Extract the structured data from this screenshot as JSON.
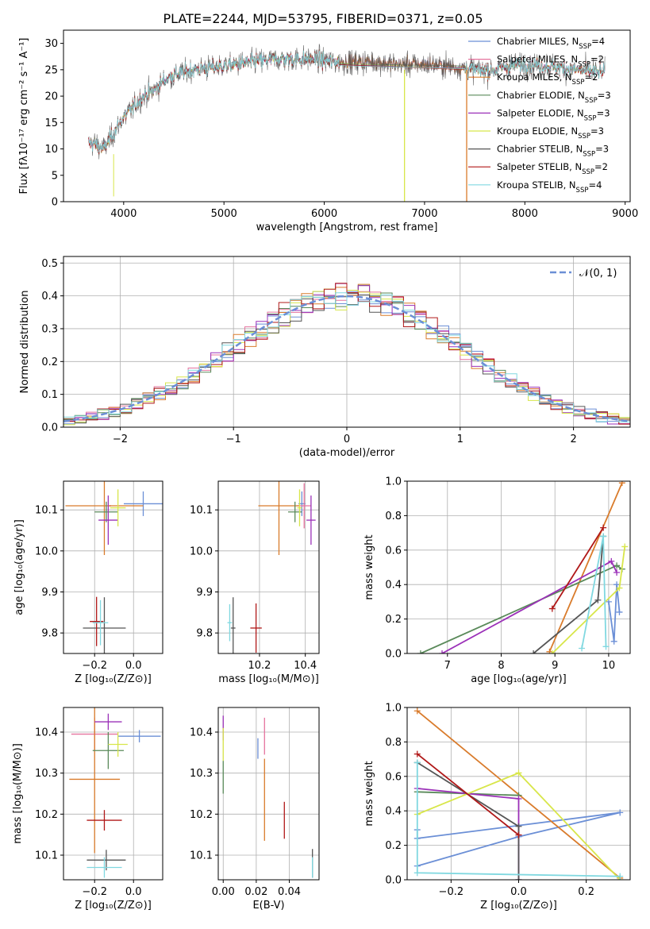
{
  "chart_data": [
    {
      "id": "spectrum",
      "type": "line",
      "title": "PLATE=2244, MJD=53795, FIBERID=0371, z=0.05",
      "xlabel": "wavelength [Angstrom, rest frame]",
      "ylabel": "Flux [fλ10⁻¹⁷ erg cm⁻² s⁻¹ A⁻¹]",
      "xlim": [
        3400,
        9050
      ],
      "ylim": [
        0,
        32.5
      ],
      "xticks": [
        4000,
        5000,
        6000,
        7000,
        8000,
        9000
      ],
      "yticks": [
        0,
        5,
        10,
        15,
        20,
        25,
        30
      ],
      "grid": false,
      "legend_position": "right",
      "legend": [
        {
          "name": "Chabrier MILES, N",
          "sub": "SSP",
          "val": "=4",
          "color": "#6b8fd6"
        },
        {
          "name": "Salpeter MILES, N",
          "sub": "SSP",
          "val": "=2",
          "color": "#e5739e"
        },
        {
          "name": "Kroupa MILES, N",
          "sub": "SSP",
          "val": "=2",
          "color": "#d97b2b"
        },
        {
          "name": "Chabrier ELODIE, N",
          "sub": "SSP",
          "val": "=3",
          "color": "#5a8a5a"
        },
        {
          "name": "Salpeter ELODIE, N",
          "sub": "SSP",
          "val": "=3",
          "color": "#9b30b8"
        },
        {
          "name": "Kroupa ELODIE, N",
          "sub": "SSP",
          "val": "=3",
          "color": "#d8e64a"
        },
        {
          "name": "Chabrier STELIB, N",
          "sub": "SSP",
          "val": "=3",
          "color": "#555555"
        },
        {
          "name": "Salpeter STELIB, N",
          "sub": "SSP",
          "val": "=2",
          "color": "#b01818"
        },
        {
          "name": "Kroupa STELIB, N",
          "sub": "SSP",
          "val": "=4",
          "color": "#80d8e0"
        }
      ],
      "continuum": {
        "x": [
          3650,
          3700,
          3800,
          3900,
          4000,
          4100,
          4200,
          4300,
          4400,
          4500,
          4700,
          4900,
          5100,
          5300,
          5500,
          5700,
          5900,
          6100,
          6300,
          6500,
          6700,
          6900,
          7100,
          7300,
          7500,
          7700,
          7900,
          8100,
          8300,
          8500,
          8800
        ],
        "y": [
          11,
          11,
          10,
          13,
          16,
          18,
          20,
          21,
          23,
          24,
          25,
          25.5,
          26,
          26.5,
          27,
          27,
          27,
          26.5,
          26.5,
          26.5,
          26,
          26,
          26,
          25.5,
          25,
          25,
          26,
          26,
          25.5,
          25,
          24.5
        ]
      }
    },
    {
      "id": "residuals",
      "type": "line",
      "xlabel": "(data-model)/error",
      "ylabel": "Normed distribution",
      "xlim": [
        -2.5,
        2.5
      ],
      "ylim": [
        0,
        0.52
      ],
      "xticks": [
        -2,
        -1,
        0,
        1,
        2
      ],
      "yticks": [
        0.0,
        0.1,
        0.2,
        0.3,
        0.4,
        0.5
      ],
      "grid": true,
      "legend_position": "top-right",
      "reference": {
        "name": "𝒩(0, 1)",
        "mean": 0,
        "sd": 1,
        "color": "#6b8fd6"
      }
    },
    {
      "id": "age-vs-Z",
      "type": "scatter",
      "xlabel": "Z [log₁₀(Z/Z⊙)]",
      "ylabel": "age  [log₁₀(age/yr)]",
      "xlim": [
        -0.36,
        0.15
      ],
      "ylim": [
        9.75,
        10.17
      ],
      "xticks": [
        -0.2,
        0.0
      ],
      "yticks": [
        9.8,
        9.9,
        10.0,
        10.1
      ],
      "grid": true,
      "points": [
        {
          "color": "#6b8fd6",
          "x": 0.05,
          "y": 10.115,
          "xe": 0.1,
          "ye": 0.03
        },
        {
          "color": "#e5739e",
          "x": -0.12,
          "y": 10.11,
          "xe": 0.0,
          "ye": 0.0
        },
        {
          "color": "#d97b2b",
          "x": -0.15,
          "y": 10.11,
          "xe": 0.2,
          "ye": 0.12
        },
        {
          "color": "#5a8a5a",
          "x": -0.14,
          "y": 10.095,
          "xe": 0.06,
          "ye": 0.025
        },
        {
          "color": "#9b30b8",
          "x": -0.13,
          "y": 10.075,
          "xe": 0.05,
          "ye": 0.06
        },
        {
          "color": "#d8e64a",
          "x": -0.08,
          "y": 10.105,
          "xe": 0.04,
          "ye": 0.045
        },
        {
          "color": "#555555",
          "x": -0.15,
          "y": 9.812,
          "xe": 0.11,
          "ye": 0.075
        },
        {
          "color": "#b01818",
          "x": -0.19,
          "y": 9.828,
          "xe": 0.035,
          "ye": 0.06
        },
        {
          "color": "#80d8e0",
          "x": -0.17,
          "y": 9.825,
          "xe": 0.04,
          "ye": 0.055
        }
      ]
    },
    {
      "id": "age-vs-mass",
      "type": "scatter",
      "xlabel": "mass [log₁₀(M/M⊙)]",
      "ylabel": "",
      "xlim": [
        10.02,
        10.46
      ],
      "ylim": [
        9.75,
        10.17
      ],
      "xticks": [
        10.2,
        10.4
      ],
      "yticks": [
        9.8,
        9.9,
        10.0,
        10.1
      ],
      "grid": true,
      "points": [
        {
          "color": "#6b8fd6",
          "x": 10.385,
          "y": 10.115,
          "xe": 0.015,
          "ye": 0.03
        },
        {
          "color": "#e5739e",
          "x": 10.395,
          "y": 10.11,
          "xe": 0.03,
          "ye": 0.055
        },
        {
          "color": "#d97b2b",
          "x": 10.285,
          "y": 10.11,
          "xe": 0.09,
          "ye": 0.12
        },
        {
          "color": "#5a8a5a",
          "x": 10.355,
          "y": 10.095,
          "xe": 0.03,
          "ye": 0.025
        },
        {
          "color": "#9b30b8",
          "x": 10.425,
          "y": 10.075,
          "xe": 0.02,
          "ye": 0.06
        },
        {
          "color": "#d8e64a",
          "x": 10.375,
          "y": 10.105,
          "xe": 0.01,
          "ye": 0.045
        },
        {
          "color": "#555555",
          "x": 10.085,
          "y": 9.812,
          "xe": 0.01,
          "ye": 0.075
        },
        {
          "color": "#b01818",
          "x": 10.185,
          "y": 9.812,
          "xe": 0.025,
          "ye": 0.06
        },
        {
          "color": "#80d8e0",
          "x": 10.07,
          "y": 9.825,
          "xe": 0.01,
          "ye": 0.045
        }
      ]
    },
    {
      "id": "weight-vs-age",
      "type": "line",
      "xlabel": "age  [log₁₀(age/yr)]",
      "ylabel": "mass weight",
      "xlim": [
        6.25,
        10.4
      ],
      "ylim": [
        0,
        1.0
      ],
      "xticks": [
        7,
        8,
        9,
        10
      ],
      "yticks": [
        0.0,
        0.2,
        0.4,
        0.6,
        0.8,
        1.0
      ],
      "grid": true,
      "series": [
        {
          "color": "#6b8fd6",
          "x": [
            10.0,
            10.1,
            10.15,
            10.2
          ],
          "y": [
            0.3,
            0.07,
            0.4,
            0.24
          ]
        },
        {
          "color": "#d97b2b",
          "x": [
            8.9,
            10.25
          ],
          "y": [
            0.01,
            0.99
          ]
        },
        {
          "color": "#5a8a5a",
          "x": [
            6.5,
            10.15,
            10.25
          ],
          "y": [
            0.0,
            0.51,
            0.49
          ]
        },
        {
          "color": "#9b30b8",
          "x": [
            6.9,
            10.05,
            10.15
          ],
          "y": [
            0.0,
            0.535,
            0.47
          ]
        },
        {
          "color": "#d8e64a",
          "x": [
            8.95,
            10.2,
            10.3
          ],
          "y": [
            0.0,
            0.38,
            0.62
          ]
        },
        {
          "color": "#555555",
          "x": [
            8.6,
            9.8,
            9.9
          ],
          "y": [
            0.0,
            0.31,
            0.68
          ]
        },
        {
          "color": "#b01818",
          "x": [
            8.95,
            9.9
          ],
          "y": [
            0.26,
            0.73
          ]
        },
        {
          "color": "#80d8e0",
          "x": [
            9.5,
            9.9,
            9.95
          ],
          "y": [
            0.03,
            0.68,
            0.04
          ]
        }
      ]
    },
    {
      "id": "mass-vs-Z",
      "type": "scatter",
      "xlabel": "Z [log₁₀(Z/Z⊙)]",
      "ylabel": "mass [log₁₀(M/M⊙)]",
      "xlim": [
        -0.36,
        0.15
      ],
      "ylim": [
        10.04,
        10.46
      ],
      "xticks": [
        -0.2,
        0.0
      ],
      "yticks": [
        10.1,
        10.2,
        10.3,
        10.4
      ],
      "grid": true,
      "points": [
        {
          "color": "#6b8fd6",
          "x": 0.03,
          "y": 10.39,
          "xe": 0.11,
          "ye": 0.015
        },
        {
          "color": "#e5739e",
          "x": -0.2,
          "y": 10.395,
          "xe": 0.12,
          "ye": 0.04
        },
        {
          "color": "#d97b2b",
          "x": -0.2,
          "y": 10.285,
          "xe": 0.13,
          "ye": 0.18
        },
        {
          "color": "#5a8a5a",
          "x": -0.13,
          "y": 10.355,
          "xe": 0.08,
          "ye": 0.045
        },
        {
          "color": "#9b30b8",
          "x": -0.13,
          "y": 10.425,
          "xe": 0.07,
          "ye": 0.02
        },
        {
          "color": "#d8e64a",
          "x": -0.08,
          "y": 10.37,
          "xe": 0.05,
          "ye": 0.03
        },
        {
          "color": "#555555",
          "x": -0.14,
          "y": 10.088,
          "xe": 0.1,
          "ye": 0.025
        },
        {
          "color": "#b01818",
          "x": -0.15,
          "y": 10.185,
          "xe": 0.09,
          "ye": 0.025
        },
        {
          "color": "#80d8e0",
          "x": -0.15,
          "y": 10.07,
          "xe": 0.09,
          "ye": 0.025
        }
      ]
    },
    {
      "id": "mass-vs-EBV",
      "type": "scatter",
      "xlabel": "E(B-V)",
      "ylabel": "",
      "xlim": [
        -0.003,
        0.058
      ],
      "ylim": [
        10.04,
        10.46
      ],
      "xticks": [
        0.0,
        0.02,
        0.04
      ],
      "yticks": [
        10.1,
        10.2,
        10.3,
        10.4
      ],
      "grid": true,
      "points": [
        {
          "color": "#6b8fd6",
          "x": 0.021,
          "y": 10.36,
          "xe": 0,
          "ye": 0.025
        },
        {
          "color": "#e5739e",
          "x": 0.025,
          "y": 10.39,
          "xe": 0,
          "ye": 0.045
        },
        {
          "color": "#d97b2b",
          "x": 0.025,
          "y": 10.235,
          "xe": 0,
          "ye": 0.1
        },
        {
          "color": "#5a8a5a",
          "x": 0.0,
          "y": 10.29,
          "xe": 0,
          "ye": 0.04
        },
        {
          "color": "#9b30b8",
          "x": 0.0,
          "y": 10.41,
          "xe": 0,
          "ye": 0.03
        },
        {
          "color": "#d8e64a",
          "x": 0.0,
          "y": 10.37,
          "xe": 0,
          "ye": 0.04
        },
        {
          "color": "#555555",
          "x": 0.054,
          "y": 10.08,
          "xe": 0,
          "ye": 0.035
        },
        {
          "color": "#b01818",
          "x": 0.037,
          "y": 10.185,
          "xe": 0,
          "ye": 0.045
        },
        {
          "color": "#80d8e0",
          "x": 0.054,
          "y": 10.07,
          "xe": 0,
          "ye": 0.025
        }
      ]
    },
    {
      "id": "weight-vs-Z",
      "type": "line",
      "xlabel": "Z [log₁₀(Z/Z⊙)]",
      "ylabel": "mass weight",
      "xlim": [
        -0.33,
        0.33
      ],
      "ylim": [
        0,
        1.0
      ],
      "xticks": [
        -0.2,
        0.0,
        0.2
      ],
      "yticks": [
        0.0,
        0.2,
        0.4,
        0.6,
        0.8,
        1.0
      ],
      "grid": true,
      "series": [
        {
          "color": "#6b8fd6",
          "x": [
            -0.3,
            0.0,
            0.3,
            -0.3,
            -0.3
          ],
          "y": [
            0.08,
            0.25,
            0.39,
            0.24,
            0.29
          ]
        },
        {
          "color": "#d97b2b",
          "x": [
            -0.3,
            0.3
          ],
          "y": [
            0.98,
            0.01
          ]
        },
        {
          "color": "#5a8a5a",
          "x": [
            -0.3,
            0.0
          ],
          "y": [
            0.51,
            0.49
          ]
        },
        {
          "color": "#9b30b8",
          "x": [
            -0.3,
            0.0,
            0.0
          ],
          "y": [
            0.53,
            0.47,
            0.0
          ]
        },
        {
          "color": "#d8e64a",
          "x": [
            -0.3,
            0.0,
            0.3
          ],
          "y": [
            0.38,
            0.62,
            0.0
          ]
        },
        {
          "color": "#555555",
          "x": [
            -0.3,
            0.0,
            0.0
          ],
          "y": [
            0.68,
            0.31,
            0.0
          ]
        },
        {
          "color": "#b01818",
          "x": [
            -0.3,
            0.0
          ],
          "y": [
            0.73,
            0.26
          ]
        },
        {
          "color": "#80d8e0",
          "x": [
            -0.3,
            -0.3,
            0.3
          ],
          "y": [
            0.68,
            0.04,
            0.02
          ]
        }
      ]
    }
  ]
}
